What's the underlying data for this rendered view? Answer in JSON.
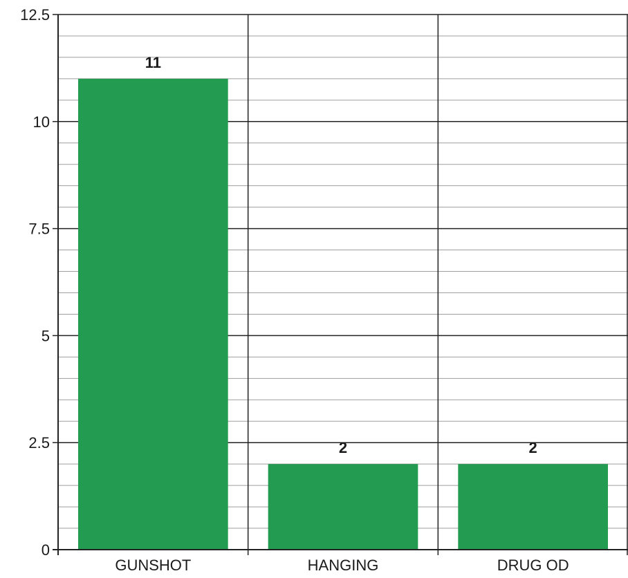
{
  "chart_data": {
    "type": "bar",
    "categories": [
      "GUNSHOT",
      "HANGING",
      "DRUG OD"
    ],
    "values": [
      11,
      2,
      2
    ],
    "data_labels": [
      "11",
      "2",
      "2"
    ],
    "ylim": [
      0,
      12.5
    ],
    "yticks": [
      0,
      2.5,
      5,
      7.5,
      10,
      12.5
    ],
    "ytick_labels": [
      "0",
      "2.5",
      "5",
      "7.5",
      "10",
      "12.5"
    ],
    "minor_step": 0.5,
    "grid": true,
    "bar_color": "#239b51",
    "major_grid_color": "#222222",
    "minor_grid_color": "#9e9e9e"
  }
}
